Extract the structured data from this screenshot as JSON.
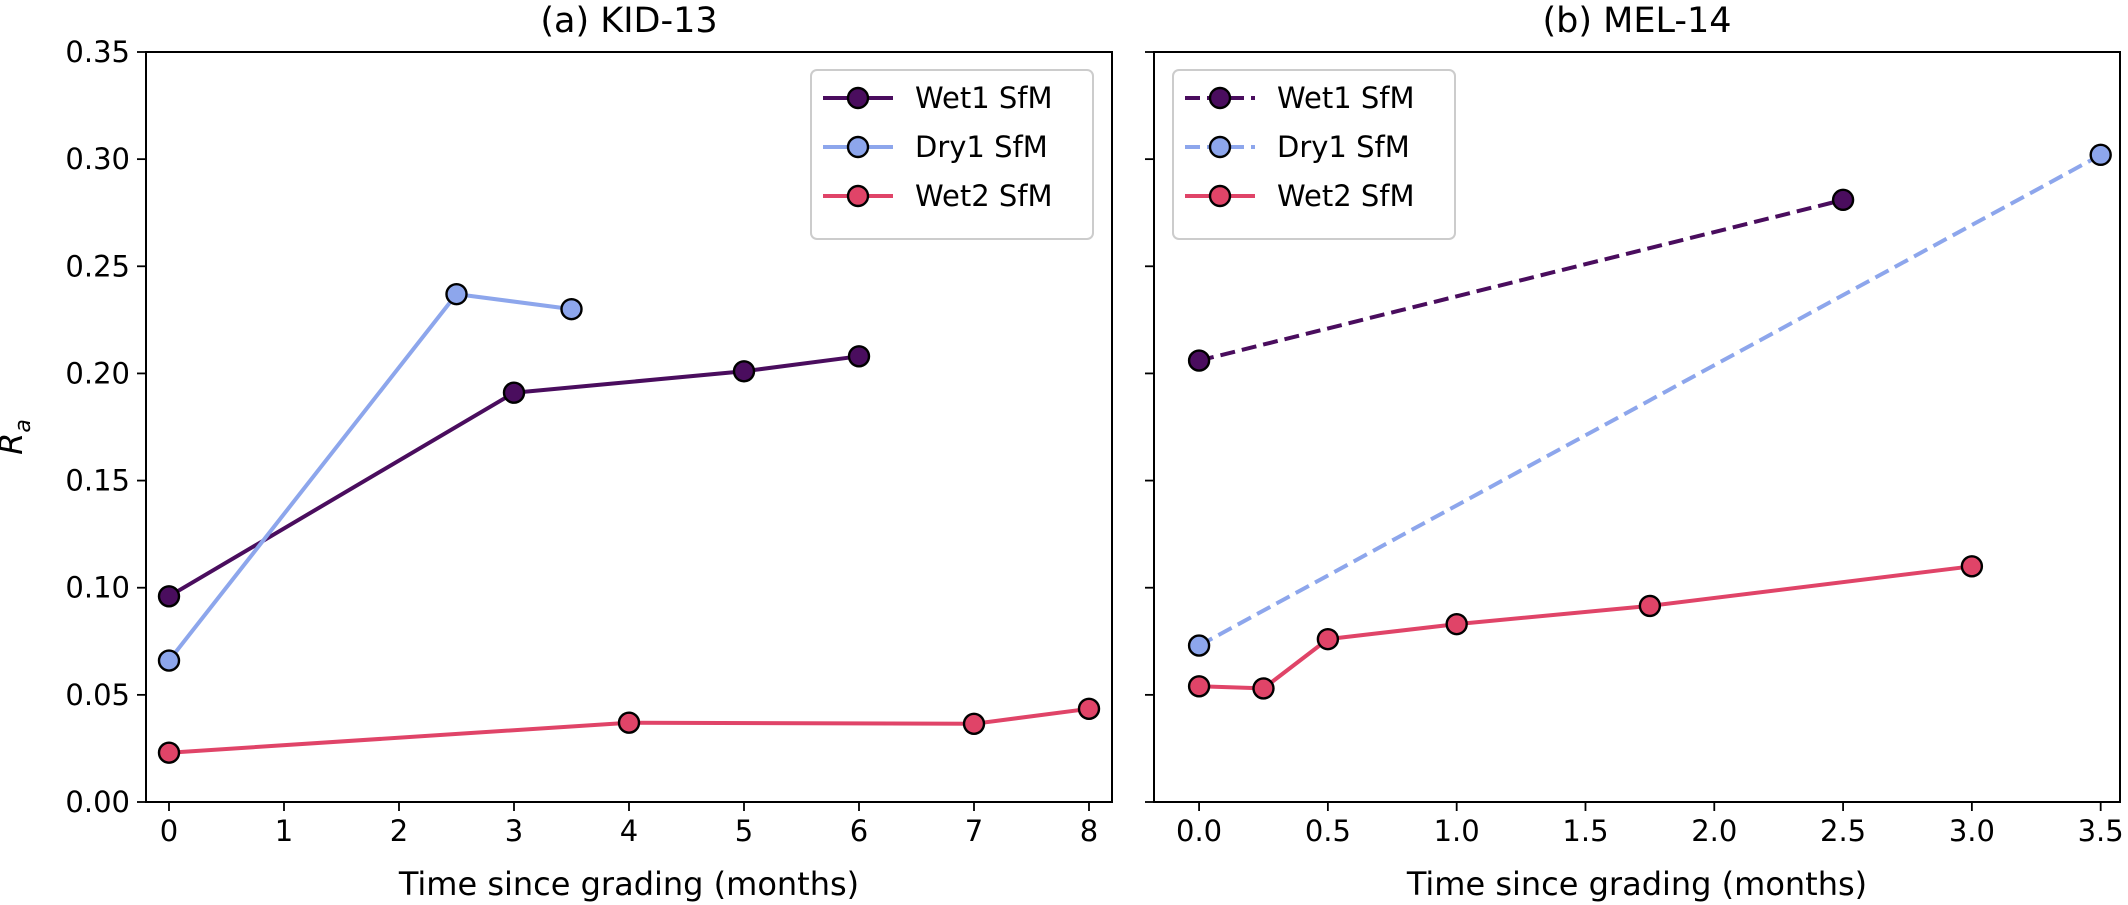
{
  "figure": {
    "ylabel": "R",
    "ylabel_sub": "a"
  },
  "chart_data": [
    {
      "type": "line",
      "title": "(a) KID-13",
      "xlabel": "Time since grading (months)",
      "ylabel": "R_a",
      "xlim": [
        -0.2,
        8.2
      ],
      "ylim": [
        0.0,
        0.35
      ],
      "xticks": [
        0,
        1,
        2,
        3,
        4,
        5,
        6,
        7,
        8
      ],
      "xtick_labels": [
        "0",
        "1",
        "2",
        "3",
        "4",
        "5",
        "6",
        "7",
        "8"
      ],
      "yticks": [
        0.0,
        0.05,
        0.1,
        0.15,
        0.2,
        0.25,
        0.3,
        0.35
      ],
      "ytick_labels": [
        "0.00",
        "0.05",
        "0.10",
        "0.15",
        "0.20",
        "0.25",
        "0.30",
        "0.35"
      ],
      "grid": false,
      "legend_position": "top-right",
      "series": [
        {
          "name": "Wet1 SfM",
          "color": "#4a0d5e",
          "dash": "solid",
          "x": [
            0,
            3,
            5,
            6
          ],
          "y": [
            0.096,
            0.191,
            0.201,
            0.208
          ]
        },
        {
          "name": "Dry1 SfM",
          "color": "#8da6ec",
          "dash": "solid",
          "x": [
            0,
            2.5,
            3.5
          ],
          "y": [
            0.066,
            0.237,
            0.23
          ]
        },
        {
          "name": "Wet2 SfM",
          "color": "#e04468",
          "dash": "solid",
          "x": [
            0,
            4,
            7,
            8
          ],
          "y": [
            0.023,
            0.037,
            0.0365,
            0.0435
          ]
        }
      ]
    },
    {
      "type": "line",
      "title": "(b) MEL-14",
      "xlabel": "Time since grading (months)",
      "ylabel": "",
      "xlim": [
        -0.175,
        3.575
      ],
      "ylim": [
        0.0,
        0.35
      ],
      "xticks": [
        0.0,
        0.5,
        1.0,
        1.5,
        2.0,
        2.5,
        3.0,
        3.5
      ],
      "xtick_labels": [
        "0.0",
        "0.5",
        "1.0",
        "1.5",
        "2.0",
        "2.5",
        "3.0",
        "3.5"
      ],
      "yticks": [
        0.0,
        0.05,
        0.1,
        0.15,
        0.2,
        0.25,
        0.3,
        0.35
      ],
      "ytick_labels": [],
      "grid": false,
      "legend_position": "top-left",
      "series": [
        {
          "name": "Wet1 SfM",
          "color": "#4a0d5e",
          "dash": "dashed",
          "x": [
            0,
            2.5
          ],
          "y": [
            0.206,
            0.281
          ]
        },
        {
          "name": "Dry1 SfM",
          "color": "#8da6ec",
          "dash": "dashed",
          "x": [
            0,
            3.5
          ],
          "y": [
            0.073,
            0.302
          ]
        },
        {
          "name": "Wet2 SfM",
          "color": "#e04468",
          "dash": "solid",
          "x": [
            0,
            0.25,
            0.5,
            1.0,
            1.75,
            3.0
          ],
          "y": [
            0.054,
            0.053,
            0.076,
            0.083,
            0.0915,
            0.11
          ]
        }
      ]
    }
  ]
}
